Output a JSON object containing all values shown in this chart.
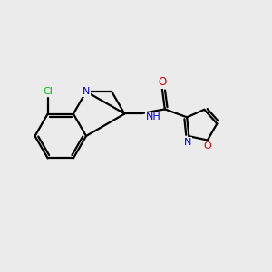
{
  "background_color": "#ebebeb",
  "bond_color": "#000000",
  "atom_colors": {
    "N": "#0000cc",
    "O": "#cc0000",
    "Cl": "#00bb00",
    "C": "#000000"
  },
  "figsize": [
    3.0,
    3.0
  ],
  "dpi": 100,
  "xlim": [
    0,
    10
  ],
  "ylim": [
    0,
    10
  ]
}
